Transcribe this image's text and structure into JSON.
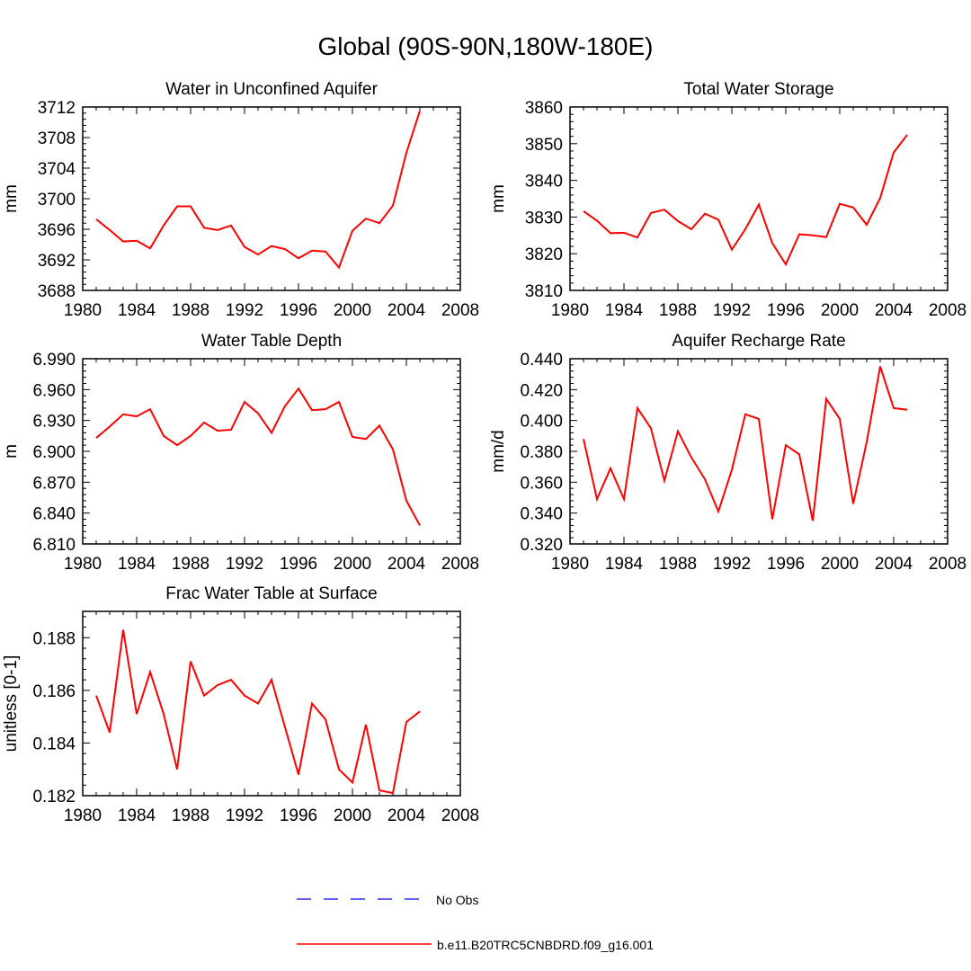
{
  "title": "Global (90S-90N,180W-180E)",
  "colors": {
    "model": "#ff0000",
    "obs": "#0000ff",
    "axis": "#000000"
  },
  "legend": {
    "obs_label": "No Obs",
    "model_label": "b.e11.B20TRC5CNBDRD.f09_g16.001"
  },
  "chart_data": [
    {
      "type": "line",
      "title": "Water in Unconfined Aquifer",
      "ylabel": "mm",
      "xlabel": "",
      "xlim": [
        1980,
        2008
      ],
      "ylim": [
        3688,
        3712
      ],
      "xticks": [
        1980,
        1984,
        1988,
        1992,
        1996,
        2000,
        2004,
        2008
      ],
      "yticks": [
        "3688",
        "3692",
        "3696",
        "3700",
        "3704",
        "3708",
        "3712"
      ],
      "x": [
        1981,
        1982,
        1983,
        1984,
        1985,
        1986,
        1987,
        1988,
        1989,
        1990,
        1991,
        1992,
        1993,
        1994,
        1995,
        1996,
        1997,
        1998,
        1999,
        2000,
        2001,
        2002,
        2003,
        2004,
        2005
      ],
      "series": [
        {
          "name": "b.e11.B20TRC5CNBDRD.f09_g16.001",
          "values": [
            3697.3,
            3695.9,
            3694.4,
            3694.5,
            3693.5,
            3696.5,
            3699.0,
            3699.0,
            3696.2,
            3695.9,
            3696.5,
            3693.7,
            3692.7,
            3693.8,
            3693.4,
            3692.2,
            3693.2,
            3693.1,
            3691.0,
            3695.8,
            3697.4,
            3696.8,
            3699.1,
            3706.0,
            3711.5
          ]
        }
      ]
    },
    {
      "type": "line",
      "title": "Total Water Storage",
      "ylabel": "mm",
      "xlabel": "",
      "xlim": [
        1980,
        2008
      ],
      "ylim": [
        3810,
        3860
      ],
      "xticks": [
        1980,
        1984,
        1988,
        1992,
        1996,
        2000,
        2004,
        2008
      ],
      "yticks": [
        "3810",
        "3820",
        "3830",
        "3840",
        "3850",
        "3860"
      ],
      "x": [
        1981,
        1982,
        1983,
        1984,
        1985,
        1986,
        1987,
        1988,
        1989,
        1990,
        1991,
        1992,
        1993,
        1994,
        1995,
        1996,
        1997,
        1998,
        1999,
        2000,
        2001,
        2002,
        2003,
        2004,
        2005
      ],
      "series": [
        {
          "name": "b.e11.B20TRC5CNBDRD.f09_g16.001",
          "values": [
            3831.6,
            3829.0,
            3825.6,
            3825.7,
            3824.4,
            3831.1,
            3832.0,
            3828.9,
            3826.7,
            3830.9,
            3829.3,
            3821.1,
            3826.7,
            3833.4,
            3822.9,
            3817.1,
            3825.3,
            3825.0,
            3824.5,
            3833.6,
            3832.6,
            3827.9,
            3835.2,
            3847.6,
            3852.4
          ]
        }
      ]
    },
    {
      "type": "line",
      "title": "Water Table Depth",
      "ylabel": "m",
      "xlabel": "",
      "xlim": [
        1980,
        2008
      ],
      "ylim": [
        6.81,
        6.99
      ],
      "xticks": [
        1980,
        1984,
        1988,
        1992,
        1996,
        2000,
        2004,
        2008
      ],
      "yticks": [
        "6.810",
        "6.840",
        "6.870",
        "6.900",
        "6.930",
        "6.960",
        "6.990"
      ],
      "x": [
        1981,
        1982,
        1983,
        1984,
        1985,
        1986,
        1987,
        1988,
        1989,
        1990,
        1991,
        1992,
        1993,
        1994,
        1995,
        1996,
        1997,
        1998,
        1999,
        2000,
        2001,
        2002,
        2003,
        2004,
        2005
      ],
      "series": [
        {
          "name": "b.e11.B20TRC5CNBDRD.f09_g16.001",
          "values": [
            6.913,
            6.924,
            6.936,
            6.934,
            6.941,
            6.915,
            6.906,
            6.915,
            6.928,
            6.92,
            6.921,
            6.948,
            6.937,
            6.918,
            6.944,
            6.961,
            6.94,
            6.941,
            6.948,
            6.914,
            6.912,
            6.925,
            6.902,
            6.852,
            6.828
          ]
        }
      ]
    },
    {
      "type": "line",
      "title": "Aquifer Recharge Rate",
      "ylabel": "mm/d",
      "xlabel": "",
      "xlim": [
        1980,
        2008
      ],
      "ylim": [
        0.32,
        0.44
      ],
      "xticks": [
        1980,
        1984,
        1988,
        1992,
        1996,
        2000,
        2004,
        2008
      ],
      "yticks": [
        "0.320",
        "0.340",
        "0.360",
        "0.380",
        "0.400",
        "0.420",
        "0.440"
      ],
      "x": [
        1981,
        1982,
        1983,
        1984,
        1985,
        1986,
        1987,
        1988,
        1989,
        1990,
        1991,
        1992,
        1993,
        1994,
        1995,
        1996,
        1997,
        1998,
        1999,
        2000,
        2001,
        2002,
        2003,
        2004,
        2005
      ],
      "series": [
        {
          "name": "b.e11.B20TRC5CNBDRD.f09_g16.001",
          "values": [
            0.388,
            0.349,
            0.369,
            0.349,
            0.408,
            0.395,
            0.361,
            0.393,
            0.376,
            0.362,
            0.341,
            0.368,
            0.404,
            0.401,
            0.336,
            0.384,
            0.378,
            0.335,
            0.414,
            0.401,
            0.346,
            0.386,
            0.435,
            0.408,
            0.407
          ]
        }
      ]
    },
    {
      "type": "line",
      "title": "Frac Water Table at Surface",
      "ylabel": "unitless [0-1]",
      "xlabel": "",
      "xlim": [
        1980,
        2008
      ],
      "ylim": [
        0.182,
        0.189
      ],
      "xticks": [
        1980,
        1984,
        1988,
        1992,
        1996,
        2000,
        2004,
        2008
      ],
      "yticks": [
        "0.182",
        "0.184",
        "0.186",
        "0.188"
      ],
      "x": [
        1981,
        1982,
        1983,
        1984,
        1985,
        1986,
        1987,
        1988,
        1989,
        1990,
        1991,
        1992,
        1993,
        1994,
        1995,
        1996,
        1997,
        1998,
        1999,
        2000,
        2001,
        2002,
        2003,
        2004,
        2005
      ],
      "series": [
        {
          "name": "b.e11.B20TRC5CNBDRD.f09_g16.001",
          "values": [
            0.1858,
            0.1844,
            0.1883,
            0.1851,
            0.1867,
            0.1851,
            0.183,
            0.1871,
            0.1858,
            0.1862,
            0.1864,
            0.1858,
            0.1855,
            0.1864,
            0.1846,
            0.1828,
            0.1855,
            0.1849,
            0.183,
            0.1825,
            0.1847,
            0.1822,
            0.1821,
            0.1848,
            0.1852
          ]
        }
      ]
    }
  ]
}
